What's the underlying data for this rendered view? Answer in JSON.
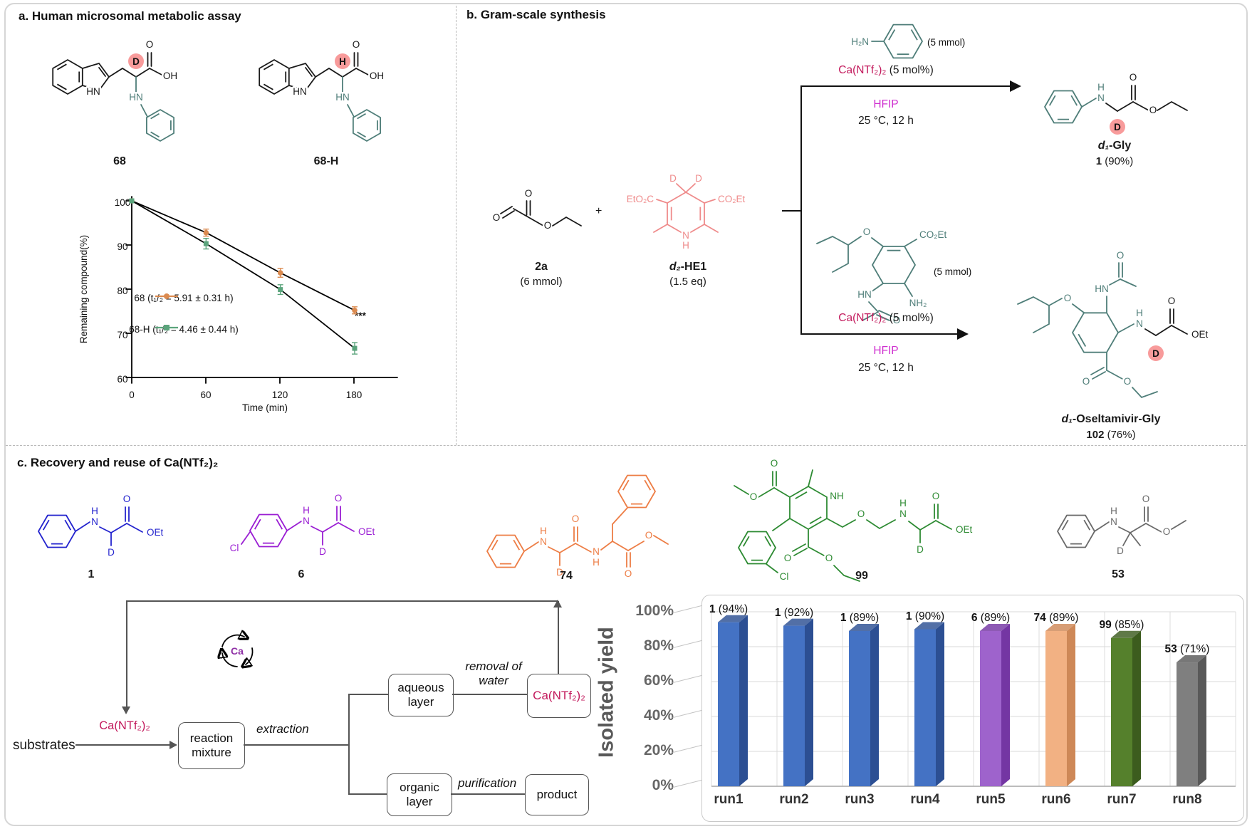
{
  "panel_a": {
    "title": "a. Human microsomal metabolic assay",
    "left_label": "68",
    "right_label": "68-H"
  },
  "panel_b": {
    "title": "b. Gram-scale synthesis",
    "reactant_label": "2a",
    "reactant_amount": "(6 mmol)",
    "plus_sign": "+",
    "he_prefix": "d₂",
    "he_rest": "-HE1",
    "he_amount": "(1.5 eq)",
    "aniline_amount": "(5 mmol)",
    "catalyst": "Ca(NTf₂)₂",
    "catalyst_load": "(5 mol%)",
    "solvent": "HFIP",
    "conditions": "25 °C, 12 h",
    "gly_prefix": "d₁",
    "gly_rest": "-Gly",
    "gly_num": "1",
    "gly_yield": "(90%)",
    "oseltamivir_amount": "(5 mmol)",
    "oselgly_prefix": "d₁",
    "oselgly_rest": "-Oseltamivir-Gly",
    "oselgly_num": "102",
    "oselgly_yield": "(76%)"
  },
  "panel_c": {
    "title": "c. Recovery and reuse of Ca(NTf₂)₂",
    "labels": [
      "1",
      "6",
      "74",
      "99",
      "53"
    ]
  },
  "flow": {
    "substrates": "substrates",
    "catalyst": "Ca(NTf₂)₂",
    "reaction_mixture": "reaction mixture",
    "extraction": "extraction",
    "aqueous_layer": "aqueous layer",
    "removal_of_water": "removal of water",
    "recovered_catalyst": "Ca(NTf₂)₂",
    "organic_layer": "organic layer",
    "purification": "purification",
    "product": "product",
    "recycle_label": "Ca"
  },
  "atoms": {
    "O": "O",
    "OH": "OH",
    "HN": "HN",
    "N": "N",
    "H": "H",
    "D": "D",
    "OEt": "OEt",
    "Cl": "Cl",
    "H2N": "H₂N",
    "NH2": "NH₂",
    "CO2Et": "CO₂Et",
    "EtO2C": "EtO₂C",
    "NH": "NH"
  },
  "chart_data": [
    {
      "type": "line",
      "x": [
        0,
        60,
        120,
        180
      ],
      "series": [
        {
          "name": "68",
          "color": "#DB8A4F",
          "marker": "circle",
          "values": [
            100,
            92.8,
            83.7,
            75.2
          ],
          "err": [
            0,
            0.8,
            1.0,
            0.8
          ],
          "legend": "68 (t₁/₂ = 5.91 ±  0.31 h)"
        },
        {
          "name": "68-H",
          "color": "#5BA47C",
          "marker": "square",
          "values": [
            100,
            90.3,
            79.9,
            66.6
          ],
          "err": [
            0,
            1.2,
            1.1,
            1.3
          ],
          "legend": "68-H (t₁/₂ = 4.46 ±  0.44 h)"
        }
      ],
      "xlabel": "Time (min)",
      "ylabel": "Remaining compound(%)",
      "xticks": [
        0,
        60,
        120,
        180
      ],
      "yticks": [
        60,
        70,
        80,
        90,
        100
      ],
      "ylim": [
        60,
        100
      ],
      "annotation": "***",
      "grid": false,
      "legend_position": "lower-left"
    },
    {
      "type": "bar",
      "categories": [
        "run1",
        "run2",
        "run3",
        "run4",
        "run5",
        "run6",
        "run7",
        "run8"
      ],
      "values": [
        94,
        92,
        89,
        90,
        89,
        89,
        85,
        71
      ],
      "bar_labels": [
        {
          "c": "1",
          "y": "(94%)"
        },
        {
          "c": "1",
          "y": "(92%)"
        },
        {
          "c": "1",
          "y": "(89%)"
        },
        {
          "c": "1",
          "y": "(90%)"
        },
        {
          "c": "6",
          "y": "(89%)"
        },
        {
          "c": "74",
          "y": "(89%)"
        },
        {
          "c": "99",
          "y": "(85%)"
        },
        {
          "c": "53",
          "y": "(71%)"
        }
      ],
      "colors_front": [
        "#4472C4",
        "#4472C4",
        "#4472C4",
        "#4472C4",
        "#9E63CC",
        "#F2B183",
        "#55802C",
        "#7F7F7F"
      ],
      "colors_dark": [
        "#2C4F93",
        "#2C4F93",
        "#2C4F93",
        "#2C4F93",
        "#7436A3",
        "#CE8857",
        "#3C5C1E",
        "#595959"
      ],
      "ylabel": "Isolated yield",
      "yticks": [
        "0%",
        "20%",
        "40%",
        "60%",
        "80%",
        "100%"
      ],
      "ylim": [
        0,
        100
      ],
      "grid": true
    }
  ]
}
